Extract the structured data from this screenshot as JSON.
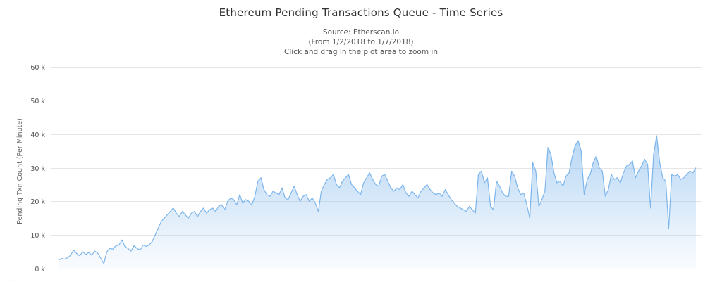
{
  "chart_data": {
    "type": "area",
    "title": "Ethereum Pending Transactions Queue - Time Series",
    "subtitle": [
      "Source: Etherscan.io",
      "(From 1/2/2018 to 1/7/2018)",
      "Click and drag in the plot area to zoom in"
    ],
    "xlabel": "",
    "ylabel": "Pending Txn Count (Per Minute)",
    "ylim": [
      0,
      60000
    ],
    "yticks": [
      0,
      10000,
      20000,
      30000,
      40000,
      50000,
      60000
    ],
    "ytick_labels": [
      "0 k",
      "10 k",
      "20 k",
      "30 k",
      "40 k",
      "50 k",
      "60 k"
    ],
    "grid": true,
    "legend": "none",
    "x_range": [
      "1/2/2018",
      "1/7/2018"
    ],
    "series": [
      {
        "color": "#7cb5ec",
        "values": [
          2500,
          3000,
          2800,
          3200,
          4000,
          5500,
          4500,
          3800,
          5000,
          4200,
          4800,
          4000,
          5200,
          4600,
          3000,
          1500,
          5000,
          6000,
          5800,
          6800,
          7000,
          8500,
          6500,
          6000,
          5200,
          6800,
          6000,
          5500,
          7000,
          6600,
          7000,
          8000,
          10000,
          12000,
          14000,
          15000,
          16000,
          17000,
          18000,
          16500,
          15500,
          17000,
          16000,
          15000,
          16500,
          17000,
          15500,
          17000,
          18000,
          16500,
          17500,
          18000,
          17000,
          18500,
          19000,
          17500,
          20000,
          21000,
          20500,
          19000,
          22000,
          19500,
          20500,
          20000,
          19000,
          21500,
          26000,
          27000,
          23500,
          22000,
          21500,
          23000,
          22500,
          22000,
          24000,
          21000,
          20500,
          22500,
          24500,
          22000,
          20000,
          21500,
          22000,
          20000,
          21000,
          19500,
          17000,
          23000,
          25000,
          26500,
          27000,
          28000,
          25000,
          24000,
          26000,
          27000,
          28000,
          25000,
          24000,
          23000,
          22000,
          25500,
          27000,
          28500,
          26500,
          25000,
          24500,
          27500,
          28000,
          26000,
          24000,
          23000,
          24000,
          23500,
          25000,
          22500,
          21500,
          23000,
          22000,
          21000,
          23000,
          24000,
          25000,
          23500,
          22500,
          22000,
          22500,
          21500,
          23500,
          22000,
          20500,
          19500,
          18500,
          18000,
          17500,
          17000,
          18500,
          17500,
          16500,
          28000,
          29000,
          25500,
          27000,
          18500,
          17500,
          26000,
          24500,
          22500,
          21500,
          21500,
          29000,
          27500,
          24000,
          22000,
          22500,
          19000,
          15000,
          31500,
          29000,
          18500,
          20500,
          23000,
          36000,
          34000,
          28500,
          25500,
          26000,
          24500,
          27500,
          28500,
          33000,
          36500,
          38000,
          35000,
          22000,
          26500,
          28000,
          31500,
          33500,
          30000,
          29000,
          21500,
          23500,
          28000,
          26500,
          27000,
          25500,
          28500,
          30500,
          31000,
          32000,
          27000,
          29000,
          30500,
          32500,
          31000,
          18000,
          34000,
          39500,
          31500,
          27000,
          26000,
          12000,
          28000,
          27500,
          28000,
          26500,
          27000,
          28000,
          29000,
          28500,
          30000
        ]
      }
    ]
  },
  "footer": {
    "mark": "..."
  }
}
